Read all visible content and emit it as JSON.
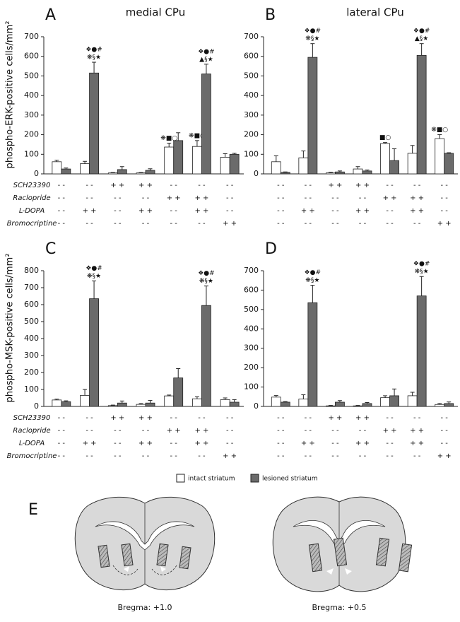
{
  "chart_data": [
    {
      "type": "bar",
      "panel": "A",
      "title": "medial CPu",
      "ylabel": "phospho-ERK-positive cells/mm²",
      "categories": [
        null,
        null,
        null,
        null,
        null,
        null,
        null
      ],
      "ylim": [
        0,
        700
      ],
      "yticks": [
        0,
        100,
        200,
        300,
        400,
        500,
        600,
        700
      ],
      "series": [
        {
          "color": "#ffffff",
          "values": [
            62,
            52,
            5,
            5,
            137,
            140,
            85
          ],
          "errors": [
            8,
            12,
            2,
            2,
            20,
            30,
            18
          ],
          "annotations": [
            null,
            null,
            null,
            null,
            [
              "❋■○"
            ],
            [
              "❋■○"
            ],
            null
          ]
        },
        {
          "color": "#6b6b6b",
          "values": [
            25,
            515,
            22,
            18,
            170,
            510,
            100
          ],
          "errors": [
            5,
            55,
            15,
            8,
            40,
            50,
            5
          ],
          "annotations": [
            null,
            [
              "❖●#",
              "❋§★"
            ],
            null,
            null,
            null,
            [
              "❖●#",
              "▲§★"
            ],
            null
          ]
        }
      ],
      "row_labels": [
        "SCH23390",
        "Raclopride",
        "L-DOPA",
        "Bromocriptine"
      ],
      "rows": [
        [
          "- -",
          "- -",
          "+ +",
          "+ +",
          "- -",
          "- -",
          "- -"
        ],
        [
          "- -",
          "- -",
          "- -",
          "- -",
          "+ +",
          "+ +",
          "- -"
        ],
        [
          "- -",
          "+ +",
          "- -",
          "+ +",
          "- -",
          "+ +",
          "- -"
        ],
        [
          "- -",
          "- -",
          "- -",
          "- -",
          "- -",
          "- -",
          "+ +"
        ]
      ]
    },
    {
      "type": "bar",
      "panel": "B",
      "title": "lateral CPu",
      "categories": [
        null,
        null,
        null,
        null,
        null,
        null,
        null
      ],
      "ylim": [
        0,
        700
      ],
      "yticks": [
        0,
        100,
        200,
        300,
        400,
        500,
        600,
        700
      ],
      "series": [
        {
          "color": "#ffffff",
          "values": [
            62,
            82,
            5,
            25,
            155,
            105,
            180
          ],
          "errors": [
            30,
            35,
            3,
            12,
            5,
            40,
            20
          ],
          "annotations": [
            null,
            null,
            null,
            null,
            [
              "■○"
            ],
            null,
            [
              "❋■○"
            ]
          ]
        },
        {
          "color": "#6b6b6b",
          "values": [
            8,
            595,
            10,
            15,
            68,
            605,
            105
          ],
          "errors": [
            2,
            70,
            5,
            5,
            60,
            60,
            3
          ],
          "annotations": [
            null,
            [
              "❖●#",
              "❋§★"
            ],
            null,
            null,
            null,
            [
              "❖●#",
              "▲§★"
            ],
            null
          ]
        }
      ],
      "rows": [
        [
          "- -",
          "- -",
          "+ +",
          "+ +",
          "- -",
          "- -",
          "- -"
        ],
        [
          "- -",
          "- -",
          "- -",
          "- -",
          "+ +",
          "+ +",
          "- -"
        ],
        [
          "- -",
          "+ +",
          "- -",
          "+ +",
          "- -",
          "+ +",
          "- -"
        ],
        [
          "- -",
          "- -",
          "- -",
          "- -",
          "- -",
          "- -",
          "+ +"
        ]
      ]
    },
    {
      "type": "bar",
      "panel": "C",
      "ylabel": "phospho-MSK-positive cells/mm²",
      "categories": [
        null,
        null,
        null,
        null,
        null,
        null,
        null
      ],
      "ylim": [
        0,
        800
      ],
      "yticks": [
        0,
        100,
        200,
        300,
        400,
        500,
        600,
        700,
        800
      ],
      "series": [
        {
          "color": "#ffffff",
          "values": [
            38,
            65,
            5,
            12,
            62,
            45,
            40
          ],
          "errors": [
            5,
            35,
            3,
            5,
            5,
            12,
            10
          ],
          "annotations": [
            null,
            null,
            null,
            null,
            null,
            null,
            null
          ]
        },
        {
          "color": "#6b6b6b",
          "values": [
            28,
            635,
            20,
            20,
            168,
            595,
            25
          ],
          "errors": [
            5,
            105,
            12,
            15,
            55,
            115,
            15
          ],
          "annotations": [
            null,
            [
              "❖●#",
              "❋§★"
            ],
            null,
            null,
            null,
            [
              "❖●#",
              "❋§★"
            ],
            null
          ]
        }
      ],
      "row_labels": [
        "SCH23390",
        "Raclopride",
        "L-DOPA",
        "Bromocriptine"
      ],
      "rows": [
        [
          "- -",
          "- -",
          "+ +",
          "+ +",
          "- -",
          "- -",
          "- -"
        ],
        [
          "- -",
          "- -",
          "- -",
          "- -",
          "+ +",
          "+ +",
          "- -"
        ],
        [
          "- -",
          "+ +",
          "- -",
          "+ +",
          "- -",
          "+ +",
          "- -"
        ],
        [
          "- -",
          "- -",
          "- -",
          "- -",
          "- -",
          "- -",
          "+ +"
        ]
      ]
    },
    {
      "type": "bar",
      "panel": "D",
      "categories": [
        null,
        null,
        null,
        null,
        null,
        null,
        null
      ],
      "ylim": [
        0,
        700
      ],
      "yticks": [
        0,
        100,
        200,
        300,
        400,
        500,
        600,
        700
      ],
      "series": [
        {
          "color": "#ffffff",
          "values": [
            48,
            38,
            3,
            3,
            45,
            55,
            10
          ],
          "errors": [
            8,
            22,
            2,
            2,
            10,
            18,
            5
          ],
          "annotations": [
            null,
            null,
            null,
            null,
            null,
            null,
            null
          ]
        },
        {
          "color": "#6b6b6b",
          "values": [
            22,
            535,
            22,
            15,
            55,
            570,
            15
          ],
          "errors": [
            3,
            90,
            8,
            5,
            35,
            100,
            8
          ],
          "annotations": [
            null,
            [
              "❖●#",
              "❋§★"
            ],
            null,
            null,
            null,
            [
              "❖●#",
              "❋§★"
            ],
            null
          ]
        }
      ],
      "rows": [
        [
          "- -",
          "- -",
          "+ +",
          "+ +",
          "- -",
          "- -",
          "- -"
        ],
        [
          "- -",
          "- -",
          "- -",
          "- -",
          "+ +",
          "+ +",
          "- -"
        ],
        [
          "- -",
          "+ +",
          "- -",
          "+ +",
          "- -",
          "+ +",
          "- -"
        ],
        [
          "- -",
          "- -",
          "- -",
          "- -",
          "- -",
          "- -",
          "+ +"
        ]
      ]
    }
  ],
  "legend": [
    {
      "name": "intact striatum",
      "color": "#ffffff"
    },
    {
      "name": "lesioned striatum",
      "color": "#6b6b6b"
    }
  ],
  "panel_e": {
    "label": "E",
    "captions": [
      "Bregma: +1.0",
      "Bregma: +0.5"
    ]
  }
}
